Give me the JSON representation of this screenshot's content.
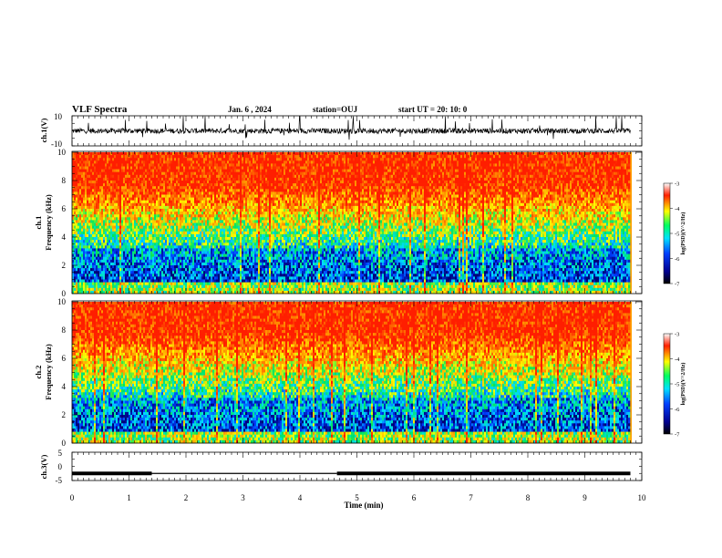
{
  "header": {
    "title": "VLF Spectra",
    "date": "Jan. 6 , 2024",
    "station": "station=OUJ",
    "start": "start UT = 20: 10: 0"
  },
  "chart_data": [
    {
      "type": "line",
      "name": "ch1-waveform",
      "ylabel": "ch.1(V)",
      "ylim": [
        -10,
        10
      ],
      "yticks": [
        "10",
        "-10"
      ],
      "xlim": [
        0,
        10
      ],
      "level": 0,
      "color": "#000000"
    },
    {
      "type": "heatmap",
      "name": "ch1-spectrogram",
      "ylabel": "ch.1\nFrequency (kHz)",
      "ylim": [
        0,
        10
      ],
      "yticks": [
        "0",
        "2",
        "4",
        "6",
        "8",
        "10"
      ],
      "xlim": [
        0,
        10
      ],
      "colorbar": {
        "label": "log(PSD)(V^2/Hz)",
        "ticks": [
          "-3",
          "-4",
          "-5",
          "-6",
          "-7"
        ],
        "range": [
          -7,
          -3
        ]
      }
    },
    {
      "type": "heatmap",
      "name": "ch2-spectrogram",
      "ylabel": "ch.2\nFrequency (kHz)",
      "ylim": [
        0,
        10
      ],
      "yticks": [
        "0",
        "2",
        "4",
        "6",
        "8",
        "10"
      ],
      "xlim": [
        0,
        10
      ],
      "colorbar": {
        "label": "log(PSD)(V^2/Hz)",
        "ticks": [
          "-3",
          "-4",
          "-5",
          "-6",
          "-7"
        ],
        "range": [
          -7,
          -3
        ]
      }
    },
    {
      "type": "line",
      "name": "ch3-level",
      "ylabel": "ch.3(V)",
      "ylim": [
        -5,
        5
      ],
      "yticks": [
        "5",
        "0",
        "-5"
      ],
      "xlim": [
        0,
        10
      ],
      "segments": [
        {
          "x": [
            0.0,
            1.4
          ],
          "y": -2.5,
          "style": "thick"
        },
        {
          "x": [
            1.4,
            4.65
          ],
          "y": -2.5,
          "style": "thin"
        },
        {
          "x": [
            4.65,
            9.8
          ],
          "y": -2.5,
          "style": "thick"
        }
      ]
    }
  ],
  "xaxis": {
    "label": "Time (min)",
    "ticks": [
      "0",
      "1",
      "2",
      "3",
      "4",
      "5",
      "6",
      "7",
      "8",
      "9",
      "10"
    ],
    "data_end": 9.8
  }
}
